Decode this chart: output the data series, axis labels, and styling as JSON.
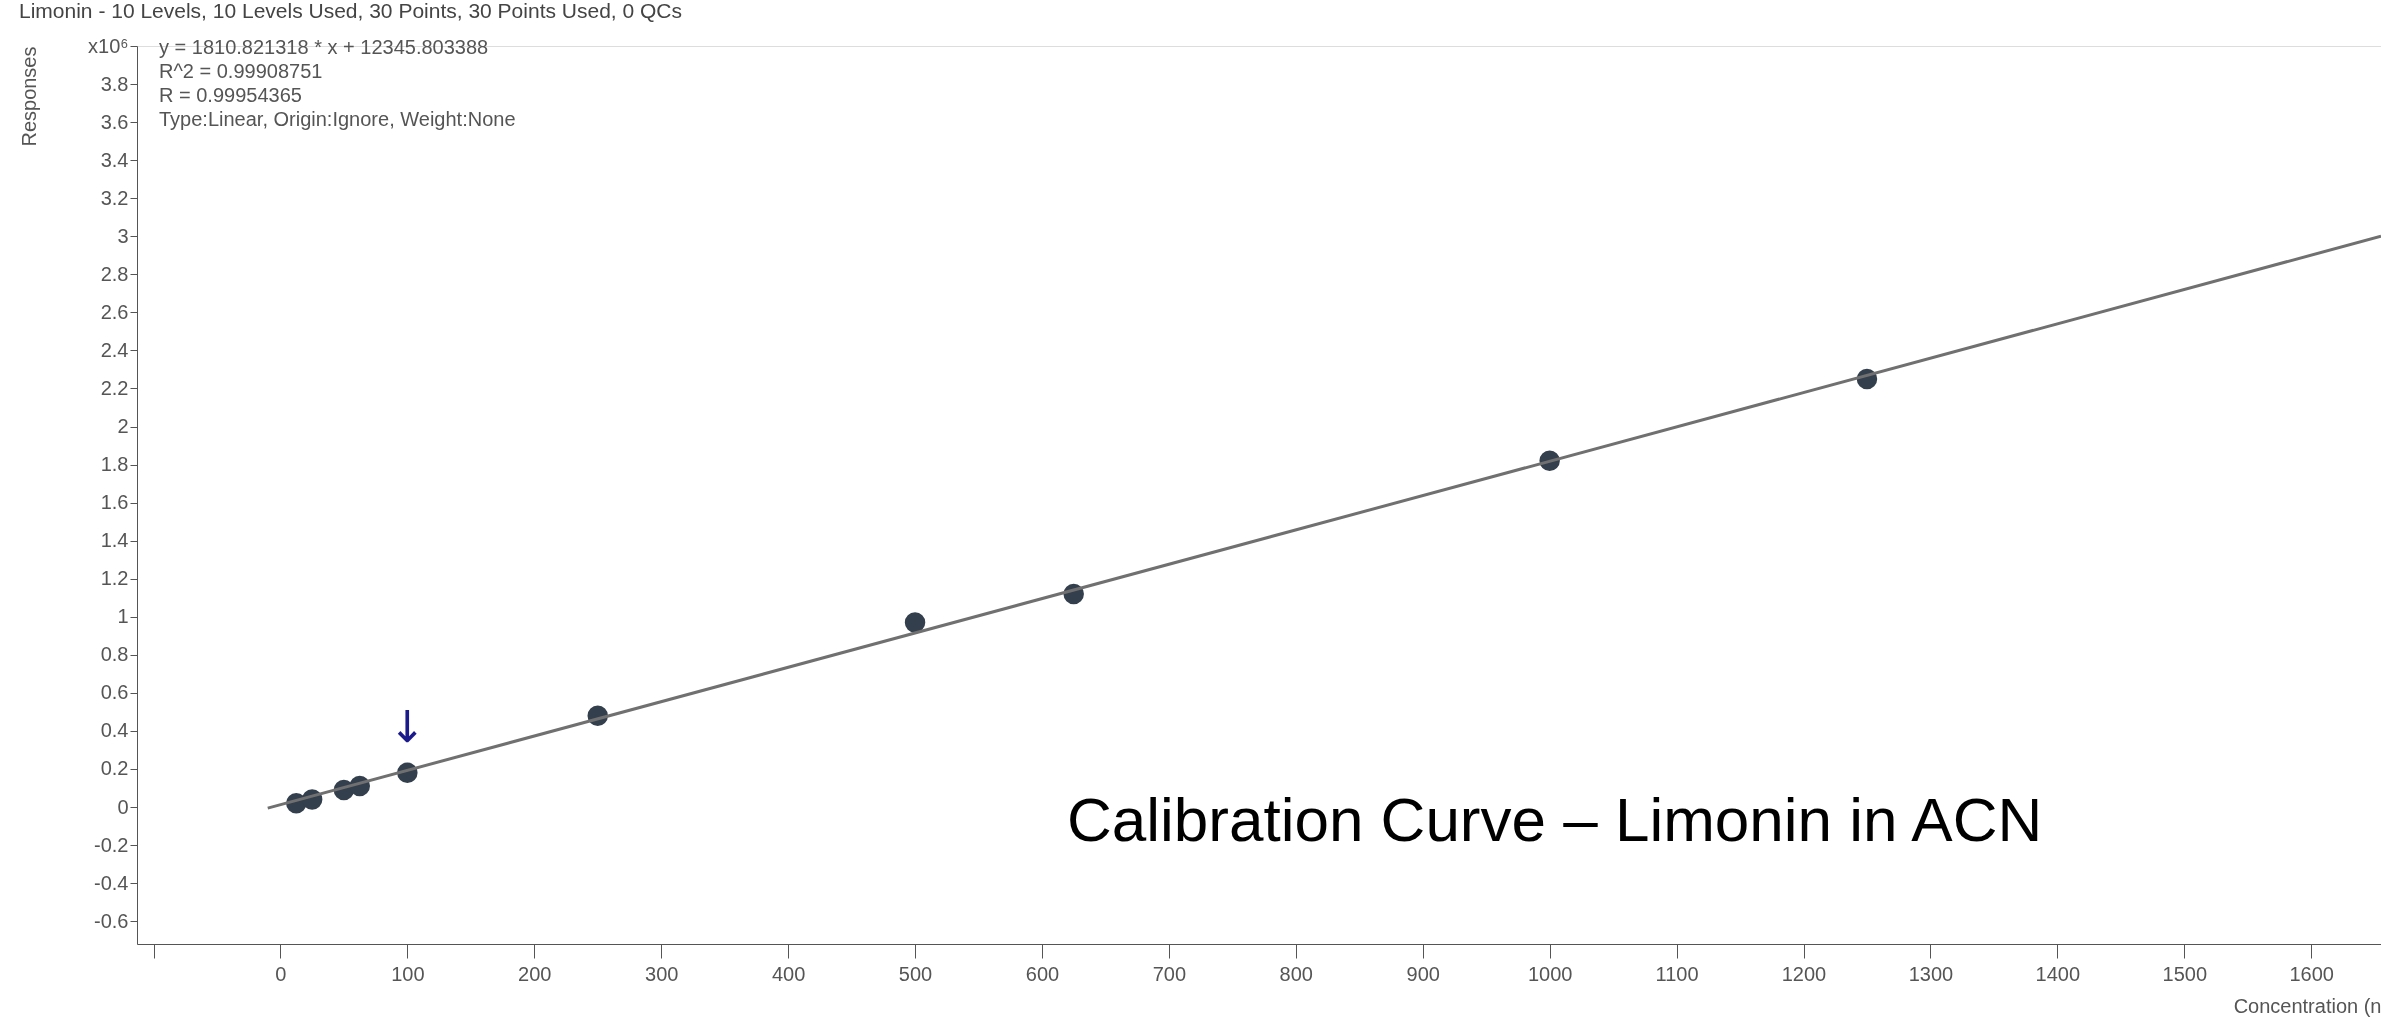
{
  "chart_data": {
    "type": "scatter",
    "title": "Limonin - 10 Levels, 10 Levels Used, 30 Points, 30 Points Used, 0 QCs",
    "xlabel": "Concentration (n",
    "ylabel": "Responses",
    "x": [
      12.5,
      25,
      50,
      62.5,
      100,
      250,
      500,
      625,
      1000,
      1250
    ],
    "series": [
      {
        "marker": "circle",
        "color": "#333f4c",
        "values": [
          0.02,
          0.04,
          0.09,
          0.11,
          0.18,
          0.48,
          0.97,
          1.12,
          1.82,
          2.25
        ]
      },
      {
        "type": "line",
        "color": "#707070",
        "x": [
          -10,
          1655
        ],
        "values": [
          -0.006,
          3.0
        ]
      }
    ],
    "xlim": [
      -113,
      1655
    ],
    "xticks": [
      {
        "value": -100,
        "label": null
      },
      0,
      100,
      200,
      300,
      400,
      500,
      600,
      700,
      800,
      900,
      1000,
      1100,
      1200,
      1300,
      1400,
      1500,
      1600
    ],
    "ylim": [
      -0.72,
      4.0
    ],
    "yticks": [
      -0.6,
      -0.4,
      -0.2,
      0,
      0.2,
      0.4,
      0.6,
      0.8,
      1,
      1.2,
      1.4,
      1.6,
      1.8,
      2,
      2.2,
      2.4,
      2.6,
      2.8,
      3,
      3.2,
      3.4,
      3.6,
      3.8,
      {
        "value": 4,
        "label": "x10⁶"
      }
    ],
    "grid": false,
    "annotations": [
      "y = 1810.821318 * x  + 12345.803388",
      "R^2 = 0.99908751",
      "R = 0.99954365",
      "Type:Linear, Origin:Ignore, Weight:None",
      "Calibration Curve – Limonin in ACN",
      {
        "text": "↓",
        "x": 100,
        "y": 0.18
      }
    ]
  }
}
